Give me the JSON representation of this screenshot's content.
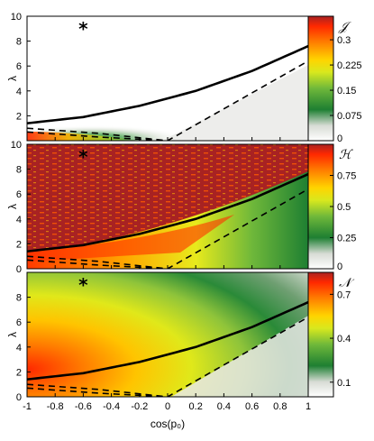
{
  "chart_data": [
    {
      "type": "heatmap",
      "panel": "top",
      "colorbar_label": "𝒥",
      "colorbar_ticks": [
        "0",
        "0.075",
        "0.15",
        "0.225",
        "0.3"
      ],
      "colorbar_tick_values": [
        0,
        0.075,
        0.15,
        0.225,
        0.3
      ],
      "colorbar_range": [
        0,
        0.37
      ],
      "ylabel": "λ",
      "ylim": [
        0,
        10
      ],
      "y_ticks": [
        "2",
        "4",
        "6",
        "8",
        "10"
      ],
      "y_tick_values": [
        2,
        4,
        6,
        8,
        10
      ],
      "colormap": [
        "#ffffff",
        "#1e7f32",
        "#a8d22a",
        "#f2ef16",
        "#ff9a00",
        "#ff2800",
        "#a82222"
      ],
      "marker": {
        "symbol": "*",
        "x": -0.6,
        "y": 9.0
      }
    },
    {
      "type": "heatmap",
      "panel": "middle",
      "colorbar_label": "ℋ",
      "colorbar_ticks": [
        "0",
        "0.25",
        "0.5",
        "0.75"
      ],
      "colorbar_tick_values": [
        0,
        0.25,
        0.5,
        0.75
      ],
      "colorbar_range": [
        0,
        1
      ],
      "ylabel": "λ",
      "ylim": [
        0,
        10
      ],
      "y_ticks": [
        "0",
        "2",
        "4",
        "6",
        "8",
        "10"
      ],
      "y_tick_values": [
        0,
        2,
        4,
        6,
        8,
        10
      ],
      "colormap": [
        "#ffffff",
        "#1e7f32",
        "#a8d22a",
        "#f2ef16",
        "#ff9a00",
        "#ff2800",
        "#a82222"
      ],
      "marker": {
        "symbol": "*",
        "x": -0.6,
        "y": 9.0
      }
    },
    {
      "type": "heatmap",
      "panel": "bottom",
      "colorbar_label": "𝒩",
      "colorbar_ticks": [
        "0.1",
        "0.4",
        "0.7"
      ],
      "colorbar_tick_values": [
        0.1,
        0.4,
        0.7
      ],
      "colorbar_range": [
        0,
        0.85
      ],
      "ylabel": "λ",
      "ylim": [
        0,
        10
      ],
      "y_ticks": [
        "0",
        "2",
        "4",
        "6",
        "8"
      ],
      "y_tick_values": [
        0,
        2,
        4,
        6,
        8
      ],
      "xlabel": "cos(p₀)",
      "xlim": [
        -1,
        1
      ],
      "x_ticks": [
        "-1",
        "-0.8",
        "-0.6",
        "-0.4",
        "-0.2",
        "0",
        "0.2",
        "0.4",
        "0.6",
        "0.8",
        "1"
      ],
      "x_tick_values": [
        -1,
        -0.8,
        -0.6,
        -0.4,
        -0.2,
        0,
        0.2,
        0.4,
        0.6,
        0.8,
        1
      ],
      "colormap": [
        "#ffffff",
        "#1e7f32",
        "#a8d22a",
        "#f2ef16",
        "#ff9a00",
        "#ff2800",
        "#a82222"
      ],
      "marker": {
        "symbol": "*",
        "x": -0.6,
        "y": 9.0
      }
    }
  ],
  "curves": {
    "solid": {
      "x": [
        -1,
        -0.6,
        -0.2,
        0.2,
        0.6,
        1.0
      ],
      "y": [
        1.4,
        1.9,
        2.8,
        4.0,
        5.6,
        7.6
      ]
    },
    "dashed_upper": {
      "x": [
        -1,
        -0.5,
        0.0,
        0.5,
        1.0
      ],
      "y": [
        1.0,
        0.6,
        0.0,
        3.2,
        6.4
      ]
    },
    "dashed_lower": {
      "x": [
        -1,
        -0.5,
        0.0
      ],
      "y": [
        0.7,
        0.3,
        0.0
      ]
    }
  }
}
